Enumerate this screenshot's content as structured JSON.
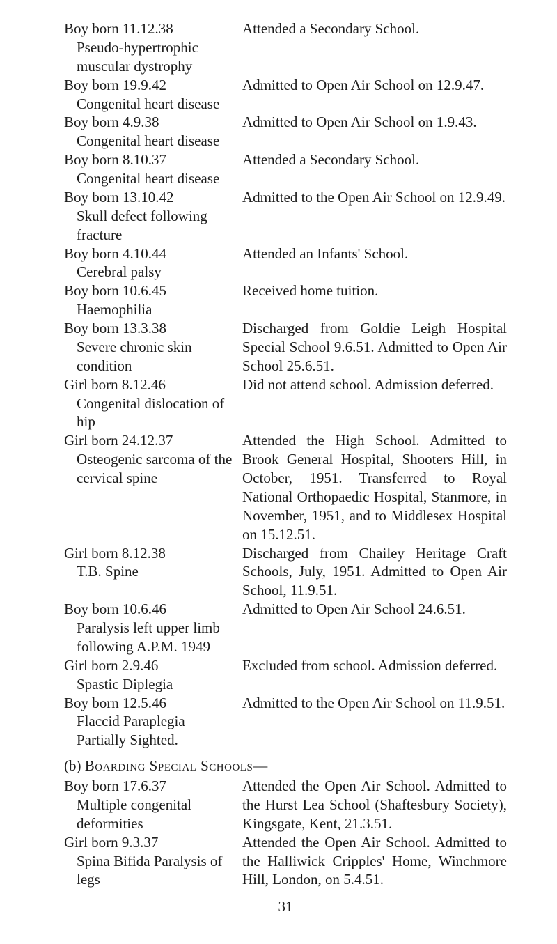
{
  "entriesA": [
    {
      "case": "Boy born 11.12.38",
      "condition": "Pseudo-hypertrophic muscular dystrophy",
      "outcome": "Attended a Secondary School."
    },
    {
      "case": "Boy born 19.9.42",
      "condition": "Congenital heart disease",
      "outcome": "Admitted to Open Air School on 12.9.47."
    },
    {
      "case": "Boy born 4.9.38",
      "condition": "Congenital heart disease",
      "outcome": "Admitted to Open Air School on 1.9.43."
    },
    {
      "case": "Boy born 8.10.37",
      "condition": "Congenital heart disease",
      "outcome": "Attended a Secondary School."
    },
    {
      "case": "Boy born 13.10.42",
      "condition": "Skull defect following fracture",
      "outcome": "Admitted to the Open Air School on 12.9.49."
    },
    {
      "case": "Boy born 4.10.44",
      "condition": "Cerebral palsy",
      "outcome": "Attended an Infants' School."
    },
    {
      "case": "Boy born 10.6.45",
      "condition": "Haemophilia",
      "outcome": "Received home tuition."
    },
    {
      "case": "Boy born 13.3.38",
      "condition": "Severe chronic skin condition",
      "outcome": "Discharged from Goldie Leigh Hospital Special School 9.6.51. Admitted to Open Air School 25.6.51."
    },
    {
      "case": "Girl born 8.12.46",
      "condition": "Congenital dislocation of hip",
      "outcome": "Did not attend school. Admission deferred."
    },
    {
      "case": "Girl born 24.12.37",
      "condition": "Osteogenic sarcoma of the cervical spine",
      "outcome": "Attended the High School. Admitted to Brook General Hospital, Shooters Hill, in October, 1951. Transferred to Royal National Orthopaedic Hospital, Stanmore, in November, 1951, and to Middlesex Hospital on 15.12.51."
    },
    {
      "case": "Girl born 8.12.38",
      "condition": "T.B. Spine",
      "outcome": "Discharged from Chailey Heritage Craft Schools, July, 1951. Admitted to Open Air School, 11.9.51."
    },
    {
      "case": "Boy born 10.6.46",
      "condition": "Paralysis left upper limb following A.P.M. 1949",
      "outcome": "Admitted to Open Air School 24.6.51."
    },
    {
      "case": "Girl born 2.9.46",
      "condition": "Spastic Diplegia",
      "outcome": "Excluded from school. Admission deferred."
    },
    {
      "case": "Boy born 12.5.46",
      "condition": "Flaccid Paraplegia Partially Sighted.",
      "outcome": "Admitted to the Open Air School on 11.9.51."
    }
  ],
  "sectionB": {
    "label_prefix": "(b) ",
    "label_caps": "Boarding Special Schools—"
  },
  "entriesB": [
    {
      "case": "Boy born 17.6.37",
      "condition": "Multiple congenital deformities",
      "outcome": "Attended the Open Air School. Admitted to the Hurst Lea School (Shaftesbury Society), Kingsgate, Kent, 21.3.51."
    },
    {
      "case": "Girl born 9.3.37",
      "condition": "Spina Bifida Paralysis of legs",
      "outcome": "Attended the Open Air School. Admitted to the Halliwick Cripples' Home, Winchmore Hill, London, on 5.4.51."
    }
  ],
  "pageNumber": "31"
}
